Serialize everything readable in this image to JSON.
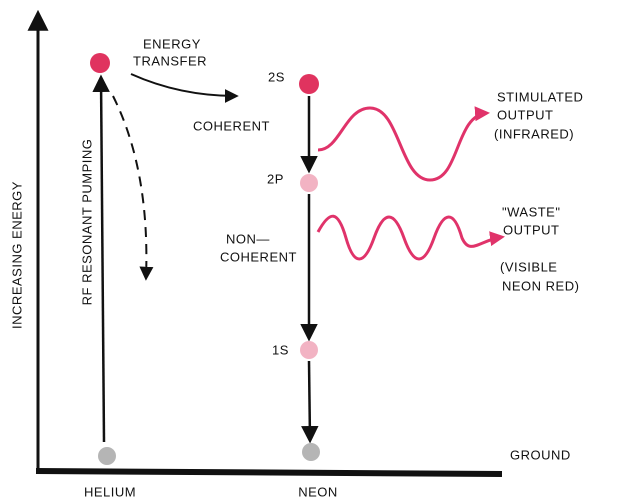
{
  "axis": {
    "y_label": "INCREASING ENERGY",
    "x_labels": [
      "HELIUM",
      "NEON"
    ]
  },
  "helium": {
    "pumping": "RF RESONANT PUMPING",
    "transfer": [
      "ENERGY",
      "TRANSFER"
    ]
  },
  "levels": [
    "2S",
    "2P",
    "1S"
  ],
  "ground": "GROUND",
  "transitions": {
    "coherent": "COHERENT",
    "noncoherent": [
      "NON—",
      "COHERENT"
    ]
  },
  "outputs": {
    "stimulated": [
      "STIMULATED",
      "OUTPUT",
      "(INFRARED)"
    ],
    "waste": [
      "\"WASTE\"",
      "OUTPUT"
    ],
    "waste_note": [
      "(VISIBLE",
      "NEON RED)"
    ]
  }
}
